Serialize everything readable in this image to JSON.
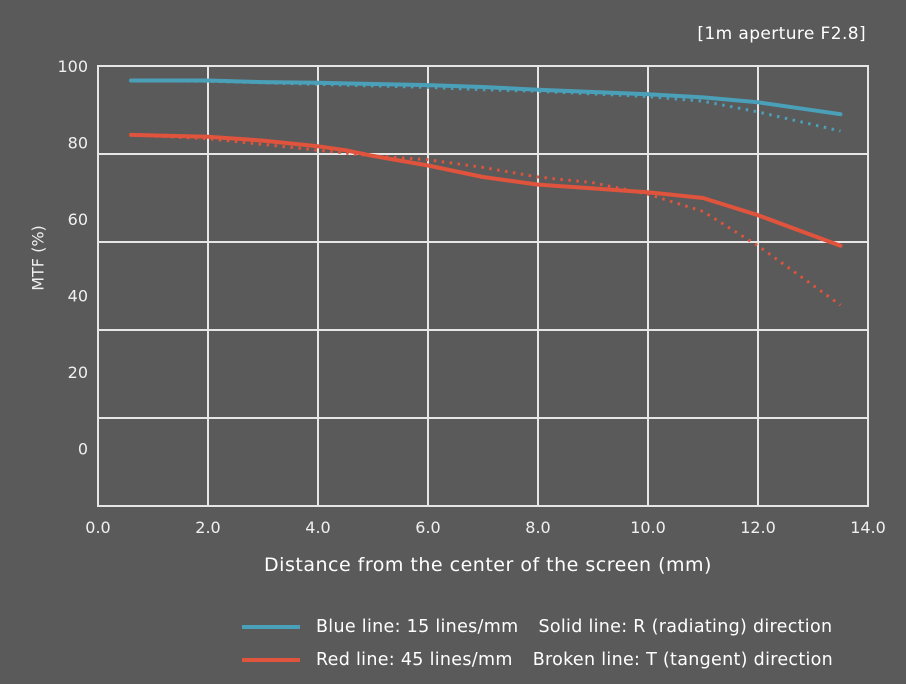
{
  "caption": "[1m aperture F2.8]",
  "chart_data": {
    "type": "line",
    "title": "",
    "xlabel": "Distance from the center of the screen (mm)",
    "ylabel": "MTF (%)",
    "xlim": [
      0,
      14
    ],
    "ylim": [
      -15,
      100
    ],
    "x_ticks": [
      "0.0",
      "2.0",
      "4.0",
      "6.0",
      "8.0",
      "10.0",
      "12.0",
      "14.0"
    ],
    "y_ticks": [
      "100",
      "80",
      "60",
      "40",
      "20",
      "0"
    ],
    "grid": true,
    "colors": {
      "blue": "#4aa0b8",
      "red": "#e0533c",
      "background": "#5a5a5a",
      "grid": "#e6e6e6"
    },
    "series": [
      {
        "color": "blue",
        "style": "solid",
        "x": [
          0.6,
          2.0,
          3.0,
          4.0,
          5.0,
          6.0,
          7.0,
          8.0,
          9.0,
          10.0,
          11.0,
          12.0,
          13.5
        ],
        "y": [
          96.2,
          96.2,
          95.8,
          95.6,
          95.3,
          95.0,
          94.5,
          93.8,
          93.2,
          92.6,
          91.8,
          90.5,
          87.4
        ]
      },
      {
        "color": "blue",
        "style": "dotted",
        "x": [
          0.6,
          2.0,
          3.0,
          4.0,
          5.0,
          6.0,
          7.0,
          8.0,
          9.0,
          10.0,
          11.0,
          12.0,
          13.5
        ],
        "y": [
          96.2,
          96.0,
          95.6,
          95.2,
          94.8,
          94.4,
          93.8,
          93.4,
          92.7,
          92.0,
          90.8,
          88.0,
          83.0
        ]
      },
      {
        "color": "red",
        "style": "solid",
        "x": [
          0.6,
          2.0,
          3.0,
          4.0,
          4.5,
          5.0,
          6.0,
          7.0,
          8.0,
          9.0,
          10.0,
          11.0,
          12.0,
          13.5
        ],
        "y": [
          82.0,
          81.5,
          80.5,
          79.0,
          78.0,
          76.5,
          74.0,
          71.0,
          69.0,
          68.0,
          67.0,
          65.5,
          61.0,
          53.0
        ]
      },
      {
        "color": "red",
        "style": "dotted",
        "x": [
          0.6,
          2.0,
          3.0,
          4.0,
          5.0,
          6.0,
          7.0,
          8.0,
          9.0,
          10.0,
          11.0,
          12.0,
          13.5
        ],
        "y": [
          82.0,
          81.0,
          79.5,
          78.0,
          76.5,
          75.5,
          73.5,
          71.0,
          69.5,
          66.5,
          62.0,
          53.0,
          37.5
        ]
      }
    ]
  },
  "legend": {
    "blue_label": "Blue line: 15 lines/mm",
    "red_label": "Red line: 45 lines/mm",
    "solid_note": "Solid line: R (radiating) direction",
    "broken_note": "Broken line: T (tangent) direction"
  }
}
